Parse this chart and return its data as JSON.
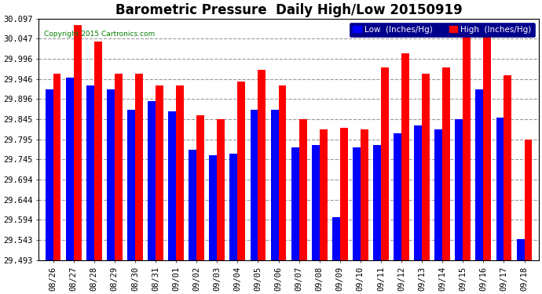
{
  "title": "Barometric Pressure  Daily High/Low 20150919",
  "copyright": "Copyright 2015 Cartronics.com",
  "legend_low": "Low  (Inches/Hg)",
  "legend_high": "High  (Inches/Hg)",
  "categories": [
    "08/26",
    "08/27",
    "08/28",
    "08/29",
    "08/30",
    "08/31",
    "09/01",
    "09/02",
    "09/03",
    "09/04",
    "09/05",
    "09/06",
    "09/07",
    "09/08",
    "09/09",
    "09/10",
    "09/11",
    "09/12",
    "09/13",
    "09/14",
    "09/15",
    "09/16",
    "09/17",
    "09/18"
  ],
  "low_values": [
    29.92,
    29.95,
    29.93,
    29.92,
    29.87,
    29.89,
    29.865,
    29.77,
    29.755,
    29.76,
    29.87,
    29.87,
    29.775,
    29.78,
    29.6,
    29.775,
    29.78,
    29.81,
    29.83,
    29.82,
    29.845,
    29.92,
    29.85,
    29.545
  ],
  "high_values": [
    29.96,
    30.08,
    30.04,
    29.96,
    29.96,
    29.93,
    29.93,
    29.855,
    29.845,
    29.94,
    29.97,
    29.93,
    29.845,
    29.82,
    29.825,
    29.82,
    29.975,
    30.01,
    29.96,
    29.975,
    30.06,
    30.07,
    29.955,
    29.795
  ],
  "ylim_min": 29.493,
  "ylim_max": 30.097,
  "yticks": [
    29.493,
    29.543,
    29.594,
    29.644,
    29.694,
    29.745,
    29.795,
    29.845,
    29.896,
    29.946,
    29.996,
    30.047,
    30.097
  ],
  "bar_color_low": "#0000ff",
  "bar_color_high": "#ff0000",
  "bg_color": "#ffffff",
  "grid_color": "#999999",
  "title_fontsize": 12,
  "tick_fontsize": 7.5,
  "bar_width": 0.38
}
